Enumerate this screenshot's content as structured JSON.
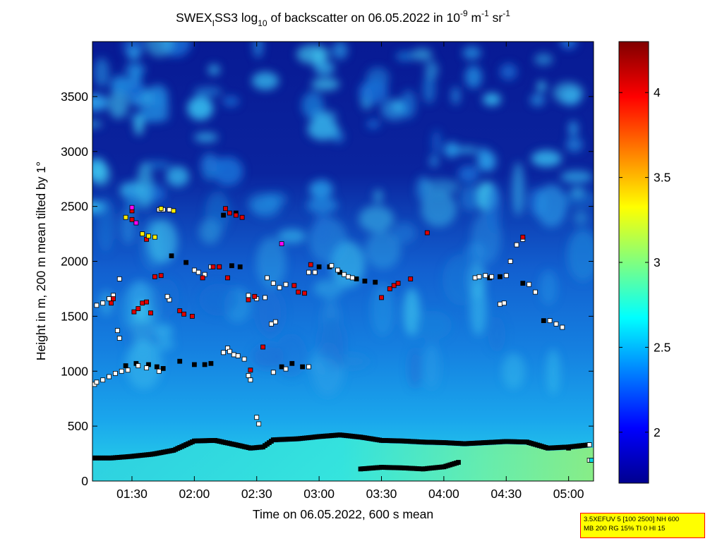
{
  "chart_data": {
    "type": "heatmap",
    "title": {
      "t1": "SWEX",
      "sub1": "I",
      "t2": "SS3 log",
      "sub2": "10",
      "t3": " of backscatter on 06.05.2022 in 10",
      "sup1": "-9",
      "t4": " m",
      "sup2": "-1",
      "t5": " sr",
      "sup3": "-1"
    },
    "xlabel": "Time on 06.05.2022, 600 s mean",
    "ylabel": "Height in m, 200 m mean tilted by 1°",
    "xlim": [
      "01:11",
      "05:12"
    ],
    "ylim": [
      0,
      4000
    ],
    "x_ticks": [
      "01:30",
      "02:00",
      "02:30",
      "03:00",
      "03:30",
      "04:00",
      "04:30",
      "05:00"
    ],
    "y_ticks": [
      0,
      500,
      1000,
      1500,
      2000,
      2500,
      3000,
      3500
    ],
    "colorbar": {
      "range": [
        1.7,
        4.3
      ],
      "ticks": [
        "2",
        "2.5",
        "3",
        "3.5",
        "4"
      ],
      "colormap": "jet"
    },
    "series": [
      {
        "marker": "black-square",
        "points": [
          [
            "01:11",
            210
          ],
          [
            "01:20",
            210
          ],
          [
            "01:30",
            225
          ],
          [
            "01:40",
            245
          ],
          [
            "01:50",
            280
          ],
          [
            "02:00",
            365
          ],
          [
            "02:10",
            370
          ],
          [
            "02:20",
            330
          ],
          [
            "02:27",
            300
          ],
          [
            "02:33",
            310
          ],
          [
            "02:38",
            375
          ],
          [
            "02:50",
            385
          ],
          [
            "03:00",
            405
          ],
          [
            "03:10",
            420
          ],
          [
            "03:20",
            400
          ],
          [
            "03:30",
            370
          ],
          [
            "03:40",
            365
          ],
          [
            "03:50",
            355
          ],
          [
            "04:00",
            350
          ],
          [
            "04:10",
            340
          ],
          [
            "04:20",
            350
          ],
          [
            "04:30",
            360
          ],
          [
            "04:40",
            355
          ],
          [
            "04:50",
            300
          ],
          [
            "05:00",
            310
          ],
          [
            "05:10",
            330
          ]
        ]
      },
      {
        "marker": "black-square",
        "points": [
          [
            "03:20",
            110
          ],
          [
            "03:30",
            125
          ],
          [
            "03:40",
            120
          ],
          [
            "03:50",
            110
          ],
          [
            "04:00",
            130
          ],
          [
            "04:07",
            170
          ]
        ]
      },
      {
        "marker": "black-square",
        "points": [
          [
            "01:27",
            1050
          ],
          [
            "01:32",
            1070
          ],
          [
            "01:38",
            1060
          ],
          [
            "01:42",
            1040
          ],
          [
            "01:45",
            1025
          ],
          [
            "01:53",
            1090
          ],
          [
            "02:00",
            1060
          ],
          [
            "02:05",
            1060
          ],
          [
            "02:08",
            1070
          ],
          [
            "02:42",
            1040
          ],
          [
            "02:47",
            1070
          ],
          [
            "02:52",
            1040
          ],
          [
            "02:12",
            1950
          ],
          [
            "02:18",
            1960
          ],
          [
            "02:22",
            1950
          ],
          [
            "01:56",
            1990
          ],
          [
            "01:49",
            2050
          ],
          [
            "02:14",
            2420
          ],
          [
            "02:20",
            2440
          ],
          [
            "03:00",
            1950
          ],
          [
            "03:05",
            1950
          ],
          [
            "03:10",
            1900
          ],
          [
            "03:18",
            1840
          ],
          [
            "03:22",
            1820
          ],
          [
            "03:27",
            1810
          ],
          [
            "04:22",
            1850
          ],
          [
            "04:27",
            1860
          ],
          [
            "04:38",
            1800
          ],
          [
            "04:48",
            1460
          ],
          [
            "05:00",
            300
          ],
          [
            "05:05",
            320
          ]
        ]
      },
      {
        "marker": "white-square",
        "points": [
          [
            "01:12",
            880
          ],
          [
            "01:13",
            900
          ],
          [
            "01:16",
            920
          ],
          [
            "01:19",
            950
          ],
          [
            "01:22",
            980
          ],
          [
            "01:25",
            1000
          ],
          [
            "01:28",
            1010
          ],
          [
            "01:33",
            1050
          ],
          [
            "01:37",
            1030
          ],
          [
            "01:43",
            1000
          ],
          [
            "01:13",
            1600
          ],
          [
            "01:16",
            1620
          ],
          [
            "01:19",
            1660
          ],
          [
            "01:21",
            1690
          ],
          [
            "01:23",
            1370
          ],
          [
            "01:24",
            1300
          ],
          [
            "01:24",
            1840
          ],
          [
            "01:48",
            1650
          ],
          [
            "01:47",
            1680
          ],
          [
            "01:43",
            2470
          ],
          [
            "01:45",
            2470
          ],
          [
            "01:48",
            2470
          ],
          [
            "02:00",
            1920
          ],
          [
            "02:02",
            1900
          ],
          [
            "02:05",
            1880
          ],
          [
            "02:08",
            1950
          ],
          [
            "02:14",
            1170
          ],
          [
            "02:16",
            1210
          ],
          [
            "02:17",
            1180
          ],
          [
            "02:19",
            1150
          ],
          [
            "02:21",
            1140
          ],
          [
            "02:24",
            1110
          ],
          [
            "02:26",
            960
          ],
          [
            "02:27",
            920
          ],
          [
            "02:30",
            580
          ],
          [
            "02:31",
            520
          ],
          [
            "02:26",
            1690
          ],
          [
            "02:30",
            1660
          ],
          [
            "02:34",
            1670
          ],
          [
            "02:35",
            1850
          ],
          [
            "02:38",
            1800
          ],
          [
            "02:41",
            1760
          ],
          [
            "02:44",
            1790
          ],
          [
            "02:37",
            1430
          ],
          [
            "02:39",
            1450
          ],
          [
            "02:38",
            990
          ],
          [
            "02:44",
            1020
          ],
          [
            "02:55",
            1040
          ],
          [
            "02:55",
            1900
          ],
          [
            "02:58",
            1900
          ],
          [
            "03:06",
            1960
          ],
          [
            "03:09",
            1920
          ],
          [
            "03:12",
            1880
          ],
          [
            "03:14",
            1860
          ],
          [
            "03:16",
            1850
          ],
          [
            "04:15",
            1850
          ],
          [
            "04:17",
            1860
          ],
          [
            "04:20",
            1870
          ],
          [
            "04:23",
            1860
          ],
          [
            "04:30",
            1870
          ],
          [
            "04:27",
            1610
          ],
          [
            "04:29",
            1620
          ],
          [
            "04:32",
            2000
          ],
          [
            "04:35",
            2150
          ],
          [
            "04:38",
            2200
          ],
          [
            "04:41",
            1790
          ],
          [
            "04:44",
            1720
          ],
          [
            "04:51",
            1460
          ],
          [
            "04:54",
            1430
          ],
          [
            "04:57",
            1400
          ],
          [
            "05:10",
            330
          ],
          [
            "05:10",
            190
          ]
        ]
      },
      {
        "marker": "red-square",
        "points": [
          [
            "01:20",
            1620
          ],
          [
            "01:21",
            1660
          ],
          [
            "01:31",
            1540
          ],
          [
            "01:33",
            1570
          ],
          [
            "01:35",
            1620
          ],
          [
            "01:37",
            1630
          ],
          [
            "01:39",
            1530
          ],
          [
            "01:41",
            1860
          ],
          [
            "01:44",
            1870
          ],
          [
            "01:53",
            1550
          ],
          [
            "01:55",
            1520
          ],
          [
            "01:59",
            1500
          ],
          [
            "02:04",
            1850
          ],
          [
            "02:09",
            1950
          ],
          [
            "02:12",
            1950
          ],
          [
            "02:15",
            2480
          ],
          [
            "02:17",
            2440
          ],
          [
            "02:20",
            2420
          ],
          [
            "02:23",
            2400
          ],
          [
            "02:16",
            1850
          ],
          [
            "02:26",
            1650
          ],
          [
            "02:29",
            1680
          ],
          [
            "02:33",
            1220
          ],
          [
            "02:27",
            1010
          ],
          [
            "02:48",
            1780
          ],
          [
            "02:50",
            1720
          ],
          [
            "02:53",
            1710
          ],
          [
            "02:56",
            1970
          ],
          [
            "03:30",
            1670
          ],
          [
            "03:34",
            1750
          ],
          [
            "03:36",
            1780
          ],
          [
            "03:38",
            1800
          ],
          [
            "03:44",
            1840
          ],
          [
            "03:52",
            2260
          ],
          [
            "04:38",
            2220
          ],
          [
            "01:30",
            2380
          ],
          [
            "01:30",
            2460
          ],
          [
            "01:37",
            2200
          ]
        ]
      },
      {
        "marker": "yellow-square",
        "points": [
          [
            "01:27",
            2400
          ],
          [
            "01:35",
            2250
          ],
          [
            "01:38",
            2230
          ],
          [
            "01:41",
            2220
          ],
          [
            "01:44",
            2480
          ],
          [
            "01:50",
            2460
          ]
        ]
      },
      {
        "marker": "magenta-square",
        "points": [
          [
            "01:30",
            2490
          ],
          [
            "01:32",
            2350
          ],
          [
            "02:42",
            2160
          ]
        ]
      },
      {
        "marker": "cyan-square",
        "points": [
          [
            "05:11",
            190
          ]
        ]
      }
    ]
  },
  "info_box": {
    "line1": "3.5XEFUV 5 [100 2500] NH 600",
    "line2": "MB 200 RG 15% TI 0 HI 15"
  },
  "colors": {
    "background_low": "#0a1f9e",
    "axis": "#000000",
    "info_box_fill": "#ffff00",
    "info_box_border": "#ff0000"
  }
}
